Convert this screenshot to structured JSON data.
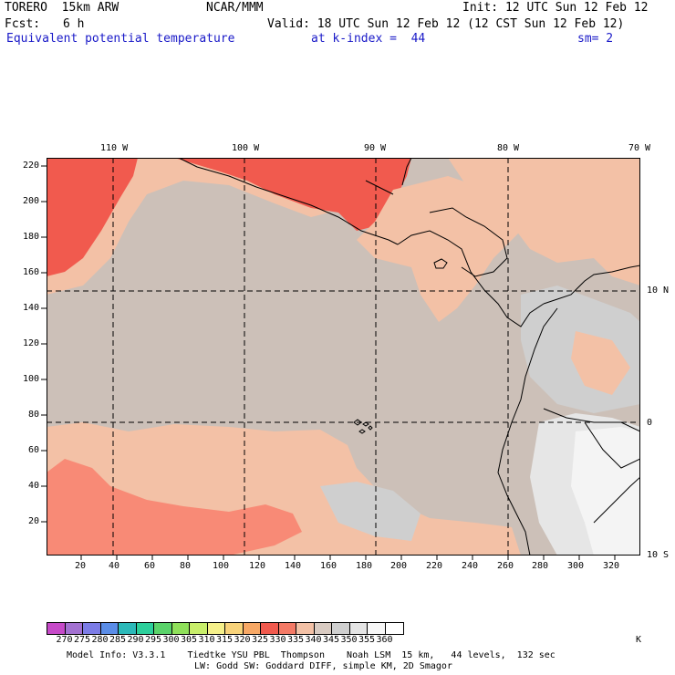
{
  "header": {
    "model": "TORERO  15km ARW",
    "org": "NCAR/MMM",
    "init": "Init: 12 UTC Sun 12 Feb 12",
    "fcst_label": "Fcst:",
    "fcst_value": "6 h",
    "valid": "Valid: 18 UTC Sun 12 Feb 12 (12 CST Sun 12 Feb 12)",
    "field": "Equivalent potential temperature",
    "level": "at k-index =  44",
    "smoothing": "sm= 2"
  },
  "map": {
    "lon_labels": [
      "110 W",
      "100 W",
      "90 W",
      "80 W",
      "70 W"
    ],
    "lat_labels": [
      "10 N",
      "0",
      "10 S"
    ],
    "y_ticks": [
      "220",
      "200",
      "180",
      "160",
      "140",
      "120",
      "100",
      "80",
      "60",
      "40",
      "20"
    ],
    "x_ticks": [
      "20",
      "40",
      "60",
      "80",
      "100",
      "120",
      "140",
      "160",
      "180",
      "200",
      "220",
      "240",
      "260",
      "280",
      "300",
      "320"
    ],
    "colors": {
      "c330": "#f15a4e",
      "c335": "#f88a76",
      "c340": "#f3c1a6",
      "c345": "#ccc0b8",
      "c350": "#cfcfcf",
      "c355": "#e6e6e6",
      "c360": "#f4f4f4"
    }
  },
  "colorbar": {
    "labels": [
      "270",
      "275",
      "280",
      "285",
      "290",
      "295",
      "300",
      "305",
      "310",
      "315",
      "320",
      "325",
      "330",
      "335",
      "340",
      "345",
      "350",
      "355",
      "360"
    ],
    "unit": "K",
    "colors": [
      "#c64ac8",
      "#a371d1",
      "#7c7ce6",
      "#5a8de8",
      "#2cb9b9",
      "#2ccf9b",
      "#5ad36a",
      "#8fe05a",
      "#c8ee6a",
      "#f5f08a",
      "#f8d37a",
      "#f7a865",
      "#f15a4e",
      "#f47a66",
      "#f3c1a6",
      "#d9cbc2",
      "#cfcfcf",
      "#e4e4e4",
      "#f7f7f7"
    ]
  },
  "footer": {
    "line1": "Model Info: V3.3.1    Tiedtke YSU PBL  Thompson    Noah LSM  15 km,   44 levels,  132 sec",
    "line2": "LW: Godd SW: Goddard DIFF, simple KM, 2D Smagor"
  }
}
